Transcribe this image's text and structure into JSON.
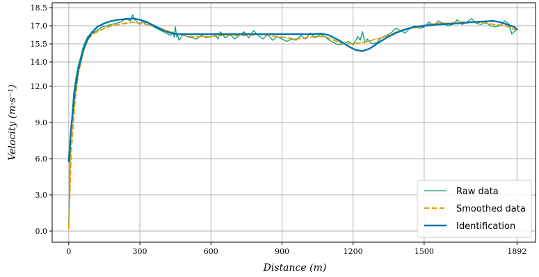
{
  "chart_data": {
    "type": "line",
    "title": "",
    "xlabel": "Distance (m)",
    "ylabel": "Velocity (m·s⁻¹)",
    "x_ticks": [
      0,
      300,
      600,
      900,
      1200,
      1500,
      1892
    ],
    "y_ticks": [
      0.0,
      3.0,
      6.0,
      9.0,
      12.0,
      14.0,
      15.5,
      17.0,
      18.5
    ],
    "x_tick_labels": [
      "0",
      "300",
      "600",
      "900",
      "1200",
      "1500",
      "1892"
    ],
    "y_tick_labels": [
      "0.0",
      "3.0",
      "6.0",
      "9.0",
      "12.0",
      "14.0",
      "15.5",
      "17.0",
      "18.5"
    ],
    "y_scale": "nonlinear",
    "xlim": [
      -70,
      1970
    ],
    "ylim": [
      -0.8,
      18.5
    ],
    "grid": true,
    "legend_position": "bottom-right",
    "series": [
      {
        "name": "Raw data",
        "color": "#009E73",
        "style": "solid",
        "x": [
          0,
          5,
          10,
          20,
          30,
          40,
          50,
          60,
          70,
          80,
          90,
          100,
          110,
          120,
          140,
          160,
          180,
          200,
          220,
          240,
          260,
          270,
          280,
          290,
          300,
          310,
          320,
          330,
          350,
          370,
          390,
          410,
          430,
          440,
          445,
          450,
          455,
          460,
          465,
          470,
          480,
          500,
          520,
          540,
          560,
          580,
          600,
          620,
          630,
          640,
          660,
          680,
          700,
          720,
          740,
          760,
          780,
          800,
          820,
          840,
          860,
          880,
          900,
          920,
          940,
          960,
          980,
          1000,
          1020,
          1040,
          1060,
          1080,
          1100,
          1120,
          1140,
          1160,
          1180,
          1200,
          1220,
          1230,
          1240,
          1250,
          1260,
          1280,
          1300,
          1320,
          1340,
          1360,
          1380,
          1400,
          1420,
          1440,
          1460,
          1480,
          1500,
          1520,
          1540,
          1560,
          1580,
          1600,
          1620,
          1640,
          1660,
          1680,
          1700,
          1720,
          1740,
          1760,
          1780,
          1800,
          1820,
          1840,
          1860,
          1870,
          1880,
          1892
        ],
        "y": [
          0.3,
          5.8,
          8.5,
          11.3,
          12.7,
          13.7,
          14.4,
          15.2,
          15.7,
          16.1,
          16.3,
          16.4,
          16.5,
          16.6,
          16.9,
          17.0,
          17.1,
          17.2,
          17.3,
          17.6,
          17.4,
          17.9,
          17.5,
          17.3,
          17.1,
          17.4,
          17.2,
          17.3,
          17.0,
          16.8,
          16.6,
          16.4,
          16.2,
          16.5,
          16.0,
          16.9,
          16.1,
          16.2,
          15.8,
          15.9,
          16.3,
          16.1,
          16.0,
          15.9,
          16.2,
          16.0,
          16.1,
          16.2,
          15.9,
          16.5,
          16.0,
          16.3,
          15.9,
          16.2,
          16.5,
          16.0,
          16.6,
          16.2,
          15.9,
          16.3,
          15.8,
          16.1,
          15.9,
          15.7,
          15.9,
          15.8,
          16.2,
          15.9,
          16.4,
          16.0,
          16.3,
          16.1,
          15.8,
          15.6,
          15.4,
          15.5,
          15.7,
          15.4,
          16.1,
          15.8,
          16.5,
          15.6,
          15.9,
          15.5,
          15.6,
          16.0,
          16.2,
          16.4,
          16.8,
          16.6,
          16.4,
          16.8,
          17.0,
          16.8,
          16.9,
          17.3,
          17.0,
          17.4,
          17.2,
          17.0,
          17.1,
          17.5,
          17.1,
          17.3,
          17.6,
          17.2,
          17.1,
          17.3,
          17.0,
          16.9,
          17.0,
          17.4,
          17.1,
          16.3,
          16.5,
          16.7
        ],
        "marker": "none"
      },
      {
        "name": "Smoothed data",
        "color": "#E69F00",
        "style": "dashed",
        "x": [
          0,
          10,
          25,
          40,
          60,
          80,
          100,
          120,
          150,
          180,
          210,
          240,
          270,
          300,
          330,
          360,
          400,
          440,
          480,
          520,
          560,
          600,
          640,
          680,
          720,
          760,
          800,
          840,
          880,
          920,
          960,
          1000,
          1040,
          1080,
          1120,
          1160,
          1200,
          1240,
          1280,
          1320,
          1360,
          1400,
          1440,
          1480,
          1520,
          1560,
          1600,
          1640,
          1680,
          1720,
          1760,
          1800,
          1840,
          1880,
          1892
        ],
        "y": [
          0.2,
          6.5,
          10.5,
          13.0,
          14.8,
          15.8,
          16.3,
          16.5,
          16.8,
          17.0,
          17.1,
          17.2,
          17.3,
          17.2,
          17.1,
          17.0,
          16.7,
          16.4,
          16.2,
          16.1,
          16.1,
          16.1,
          16.2,
          16.2,
          16.2,
          16.2,
          16.3,
          16.2,
          16.1,
          16.0,
          15.9,
          16.0,
          16.1,
          16.1,
          15.8,
          15.5,
          15.5,
          15.6,
          15.8,
          16.0,
          16.3,
          16.6,
          16.8,
          16.9,
          17.1,
          17.2,
          17.2,
          17.3,
          17.3,
          17.3,
          17.2,
          17.1,
          17.0,
          16.7,
          16.7
        ],
        "marker": "none"
      },
      {
        "name": "Identification",
        "color": "#0072B2",
        "style": "solid",
        "x": [
          0,
          10,
          25,
          40,
          60,
          80,
          100,
          120,
          150,
          180,
          210,
          240,
          270,
          300,
          330,
          360,
          400,
          430,
          460,
          500,
          600,
          700,
          800,
          900,
          960,
          1020,
          1060,
          1080,
          1100,
          1140,
          1180,
          1210,
          1240,
          1270,
          1300,
          1340,
          1380,
          1420,
          1460,
          1500,
          1550,
          1600,
          1650,
          1700,
          1750,
          1790,
          1820,
          1850,
          1880,
          1892
        ],
        "y": [
          5.8,
          8.5,
          11.5,
          13.3,
          14.9,
          15.9,
          16.5,
          16.9,
          17.2,
          17.4,
          17.5,
          17.55,
          17.6,
          17.5,
          17.3,
          17.0,
          16.6,
          16.4,
          16.3,
          16.3,
          16.3,
          16.3,
          16.3,
          16.3,
          16.3,
          16.3,
          16.35,
          16.3,
          16.2,
          15.8,
          15.3,
          15.0,
          14.9,
          15.1,
          15.5,
          16.0,
          16.4,
          16.7,
          16.9,
          17.0,
          17.1,
          17.15,
          17.2,
          17.3,
          17.35,
          17.4,
          17.3,
          17.1,
          16.9,
          16.7
        ],
        "marker": "none"
      }
    ]
  }
}
